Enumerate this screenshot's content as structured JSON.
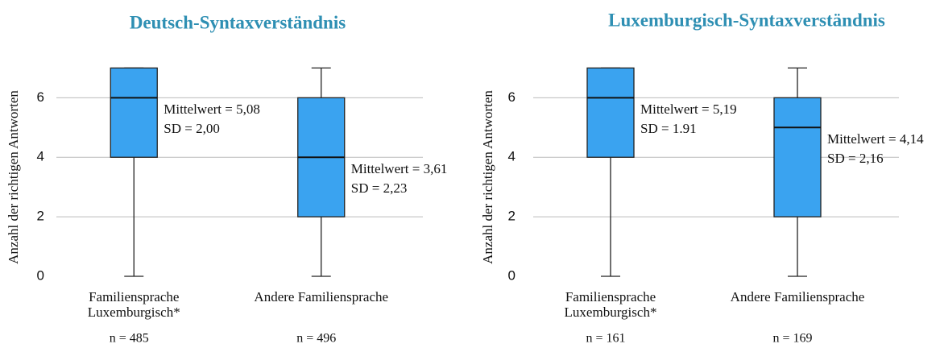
{
  "chart_data": [
    {
      "type": "box",
      "title": "Deutsch-Syntaxverständnis",
      "ylabel": "Anzahl der richtigen Antworten",
      "categories": [
        [
          "Familiensprache",
          "Luxemburgisch*"
        ],
        [
          "Andere Familiensprache"
        ]
      ],
      "boxes": [
        {
          "min": 0,
          "q1": 4,
          "median": 6,
          "q3": 7,
          "max": 7
        },
        {
          "min": 0,
          "q1": 2,
          "median": 4,
          "q3": 6,
          "max": 7
        }
      ],
      "annotations": [
        [
          "Mittelwert = 5,08",
          "SD = 2,00"
        ],
        [
          "Mittelwert = 3,61",
          "SD = 2,23"
        ]
      ],
      "n_labels": [
        "n = 485",
        "n = 496"
      ],
      "ylim": [
        0,
        7.2
      ],
      "yticks": [
        0,
        2,
        4,
        6
      ],
      "grid": true,
      "color": "#3aa3f0",
      "title_color": "#2e8fb3"
    },
    {
      "type": "box",
      "title": "Luxemburgisch-Syntaxverständnis",
      "ylabel": "Anzahl der richtigen Antworten",
      "categories": [
        [
          "Familiensprache",
          "Luxemburgisch*"
        ],
        [
          "Andere Familiensprache"
        ]
      ],
      "boxes": [
        {
          "min": 0,
          "q1": 4,
          "median": 6,
          "q3": 7,
          "max": 7
        },
        {
          "min": 0,
          "q1": 2,
          "median": 5,
          "q3": 6,
          "max": 7
        }
      ],
      "annotations": [
        [
          "Mittelwert = 5,19",
          "SD = 1.91"
        ],
        [
          "Mittelwert = 4,14",
          "SD = 2,16"
        ]
      ],
      "n_labels": [
        "n = 161",
        "n = 169"
      ],
      "ylim": [
        0,
        7.2
      ],
      "yticks": [
        0,
        2,
        4,
        6
      ],
      "grid": true,
      "color": "#3aa3f0",
      "title_color": "#2e8fb3"
    }
  ]
}
